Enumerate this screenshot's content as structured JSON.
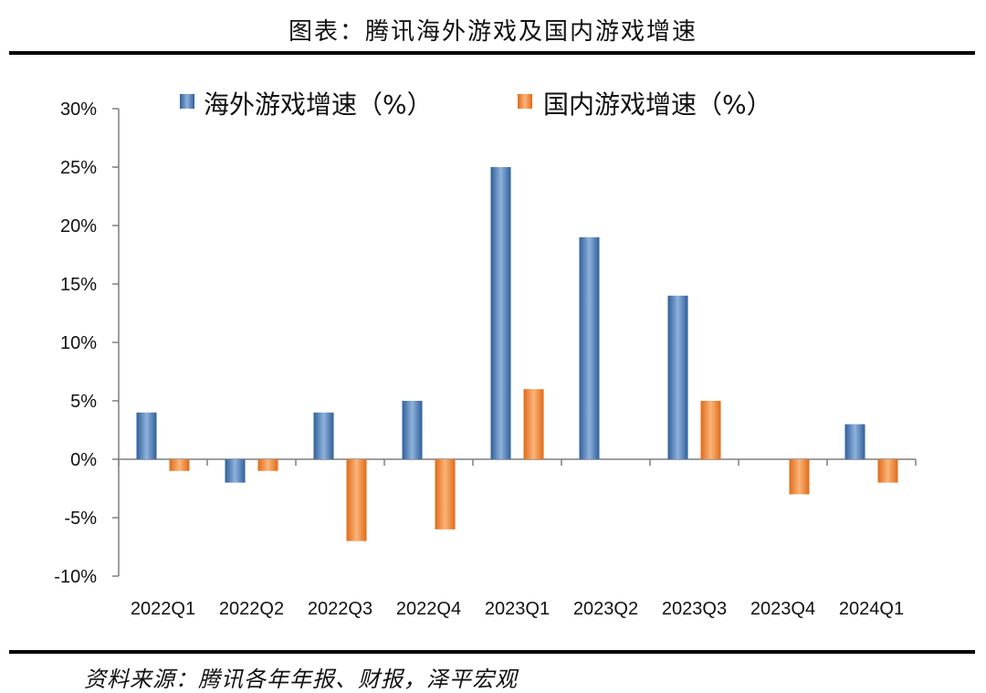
{
  "header": {
    "title": "图表：腾讯海外游戏及国内游戏增速"
  },
  "footer": {
    "source": "资料来源：腾讯各年年报、财报，泽平宏观"
  },
  "chart_data": {
    "type": "bar",
    "categories": [
      "2022Q1",
      "2022Q2",
      "2022Q3",
      "2022Q4",
      "2023Q1",
      "2023Q2",
      "2023Q3",
      "2023Q4",
      "2024Q1"
    ],
    "series": [
      {
        "name": "海外游戏增速（%）",
        "values": [
          4,
          -2,
          4,
          5,
          25,
          19,
          14,
          0,
          3
        ],
        "color": "#4F81BD"
      },
      {
        "name": "国内游戏增速（%）",
        "values": [
          -1,
          -1,
          -7,
          -6,
          6,
          0,
          5,
          -3,
          -2
        ],
        "color": "#F79646"
      }
    ],
    "ylim": [
      -10,
      30
    ],
    "yticks": [
      "-10%",
      "-5%",
      "0%",
      "5%",
      "10%",
      "15%",
      "20%",
      "25%",
      "30%"
    ],
    "ytick_values": [
      -10,
      -5,
      0,
      5,
      10,
      15,
      20,
      25,
      30
    ],
    "legend": "top",
    "grid": false
  }
}
